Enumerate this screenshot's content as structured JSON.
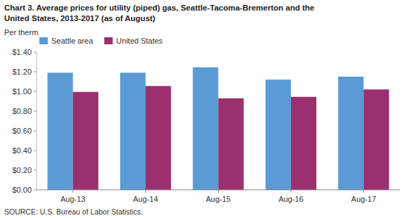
{
  "chart_data": {
    "type": "bar",
    "title": "Chart 3. Average prices for utility (piped) gas, Seattle-Tacoma-Bremerton and the",
    "subtitle": "United States, 2013-2017  (as of August)",
    "ylabel": "Per therm",
    "source": "SOURCE: U.S. Bureau of Labor Statistics.",
    "categories": [
      "Aug-13",
      "Aug-14",
      "Aug-15",
      "Aug-16",
      "Aug-17"
    ],
    "series": [
      {
        "name": "Seattle area",
        "color": "#5B9BD5",
        "values": [
          1.19,
          1.19,
          1.245,
          1.12,
          1.15
        ]
      },
      {
        "name": "United States",
        "color": "#9B3070",
        "values": [
          0.995,
          1.055,
          0.93,
          0.945,
          1.02
        ]
      }
    ],
    "ylim": [
      0,
      1.4
    ],
    "yticks": [
      {
        "value": 0.0,
        "label": "$0.00"
      },
      {
        "value": 0.2,
        "label": "$0.20"
      },
      {
        "value": 0.4,
        "label": "$0.40"
      },
      {
        "value": 0.6,
        "label": "$0.60"
      },
      {
        "value": 0.8,
        "label": "$0.80"
      },
      {
        "value": 1.0,
        "label": "$1.00"
      },
      {
        "value": 1.2,
        "label": "$1.20"
      },
      {
        "value": 1.4,
        "label": "$1.40"
      }
    ],
    "grid": false,
    "legend": "top-left"
  }
}
